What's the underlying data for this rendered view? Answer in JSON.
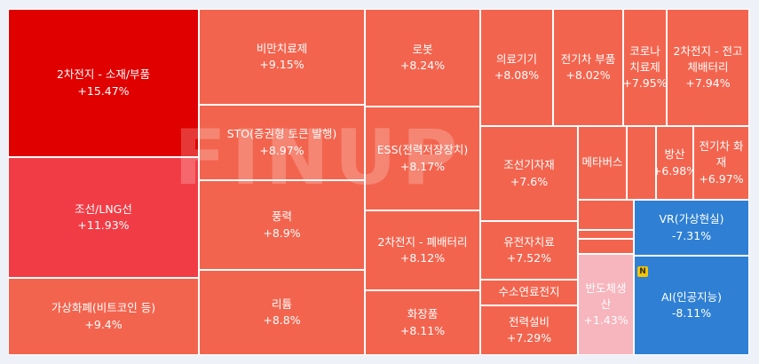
{
  "watermark": "FINUP",
  "badge": "N",
  "chart_data": {
    "type": "treemap",
    "cells": [
      {
        "name": "2차전지 - 소재/부품",
        "value": "+15.47%",
        "color": "#e00000"
      },
      {
        "name": "조선/LNG선",
        "value": "+11.93%",
        "color": "#f23c45"
      },
      {
        "name": "가상화폐(비트코인 등)",
        "value": "+9.4%",
        "color": "#f3644e"
      },
      {
        "name": "비만치료제",
        "value": "+9.15%",
        "color": "#f3644e"
      },
      {
        "name": "STO(증권형 토큰 발행)",
        "value": "+8.97%",
        "color": "#f3644e"
      },
      {
        "name": "풍력",
        "value": "+8.9%",
        "color": "#f3644e"
      },
      {
        "name": "리튬",
        "value": "+8.8%",
        "color": "#f3644e"
      },
      {
        "name": "로봇",
        "value": "+8.24%",
        "color": "#f3644e"
      },
      {
        "name": "ESS(전력저장장치)",
        "value": "+8.17%",
        "color": "#f3644e"
      },
      {
        "name": "2차전지 - 폐배터리",
        "value": "+8.12%",
        "color": "#f3644e"
      },
      {
        "name": "화장품",
        "value": "+8.11%",
        "color": "#f3644e"
      },
      {
        "name": "의료기기",
        "value": "+8.08%",
        "color": "#f3644e"
      },
      {
        "name": "전기차 부품",
        "value": "+8.02%",
        "color": "#f3644e"
      },
      {
        "name": "코로나 치료제",
        "value": "+7.95%",
        "color": "#f3644e"
      },
      {
        "name": "2차전지 - 전고체배터리",
        "value": "+7.94%",
        "color": "#f3644e"
      },
      {
        "name": "조선기자재",
        "value": "+7.6%",
        "color": "#f3644e"
      },
      {
        "name": "메타버스",
        "value": "",
        "color": "#f3644e"
      },
      {
        "name": "",
        "value": "",
        "color": "#f3644e"
      },
      {
        "name": "방산",
        "value": "+6.98%",
        "color": "#f3644e"
      },
      {
        "name": "전기차 화재",
        "value": "+6.97%",
        "color": "#f3644e"
      },
      {
        "name": "유전자치료",
        "value": "+7.52%",
        "color": "#f3644e"
      },
      {
        "name": "수소연료전지",
        "value": "",
        "color": "#f3644e"
      },
      {
        "name": "전력설비",
        "value": "+7.29%",
        "color": "#f3644e"
      },
      {
        "name": "",
        "value": "",
        "color": "#f3644e"
      },
      {
        "name": "",
        "value": "",
        "color": "#f3644e"
      },
      {
        "name": "",
        "value": "",
        "color": "#f3644e"
      },
      {
        "name": "반도체생산",
        "value": "+1.43%",
        "color": "#f7b5bd"
      },
      {
        "name": "VR(가상현실)",
        "value": "-7.31%",
        "color": "#2f80d4"
      },
      {
        "name": "AI(인공지능)",
        "value": "-8.11%",
        "color": "#2f80d4"
      }
    ]
  }
}
